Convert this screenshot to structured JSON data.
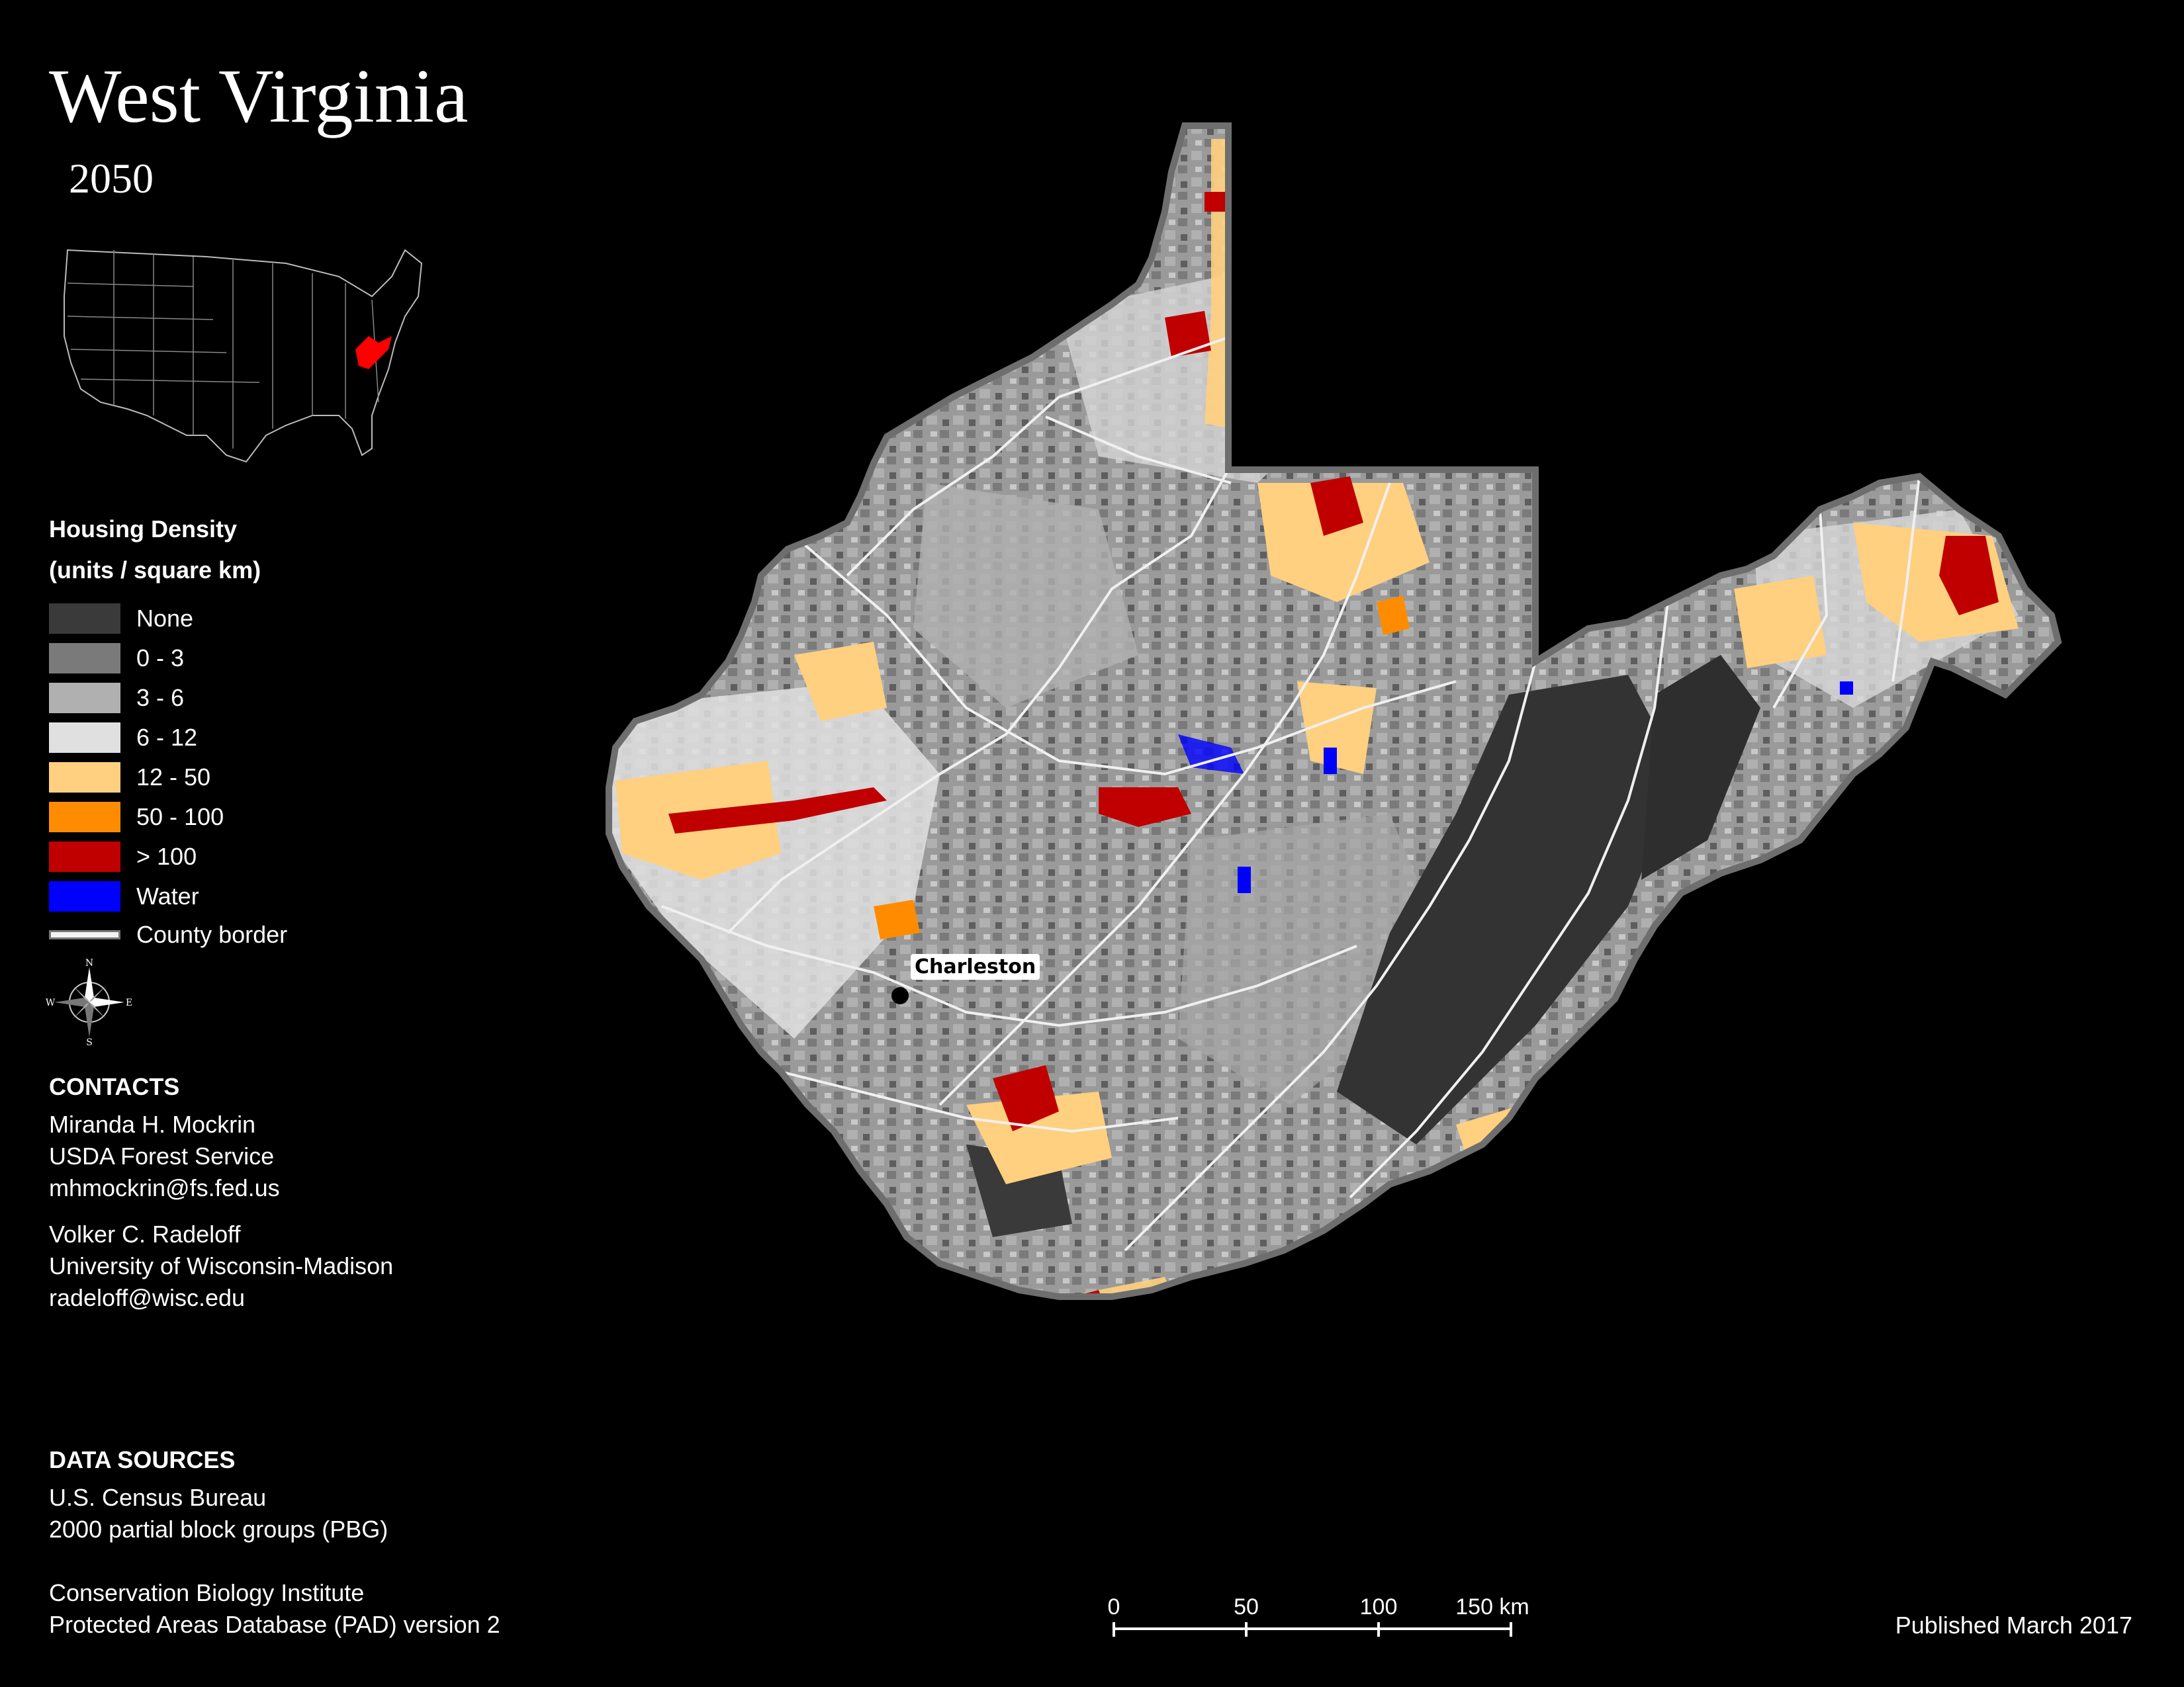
{
  "title": "West Virginia",
  "subtitle": "2050",
  "legend": {
    "title_line1": "Housing Density",
    "title_line2": "(units / square km)",
    "items": [
      {
        "label": "None",
        "color": "#3a3a3a"
      },
      {
        "label": "0 - 3",
        "color": "#7a7a7a"
      },
      {
        "label": "3 - 6",
        "color": "#b0b0b0"
      },
      {
        "label": "6 - 12",
        "color": "#e0e0e0"
      },
      {
        "label": "12 - 50",
        "color": "#ffd07f"
      },
      {
        "label": "50 - 100",
        "color": "#ff8c00"
      },
      {
        "label": "> 100",
        "color": "#c00000"
      },
      {
        "label": "Water",
        "color": "#0000ff"
      }
    ],
    "border_label": "County border"
  },
  "compass": {
    "n": "N",
    "s": "S",
    "e": "E",
    "w": "W"
  },
  "contacts": {
    "heading": "CONTACTS",
    "person1": [
      "Miranda H. Mockrin",
      "USDA Forest Service",
      "mhmockrin@fs.fed.us"
    ],
    "person2": [
      "Volker C. Radeloff",
      "University of Wisconsin-Madison",
      "radeloff@wisc.edu"
    ]
  },
  "data_sources": {
    "heading": "DATA SOURCES",
    "source1": [
      "U.S. Census Bureau",
      "2000 partial block groups (PBG)"
    ],
    "source2": [
      "Conservation Biology Institute",
      "Protected Areas Database (PAD) version 2"
    ]
  },
  "scale": {
    "ticks": [
      "0",
      "50",
      "100",
      "150 km"
    ]
  },
  "city": "Charleston",
  "published": "Published March 2017",
  "inset_highlight_color": "#ff0000"
}
